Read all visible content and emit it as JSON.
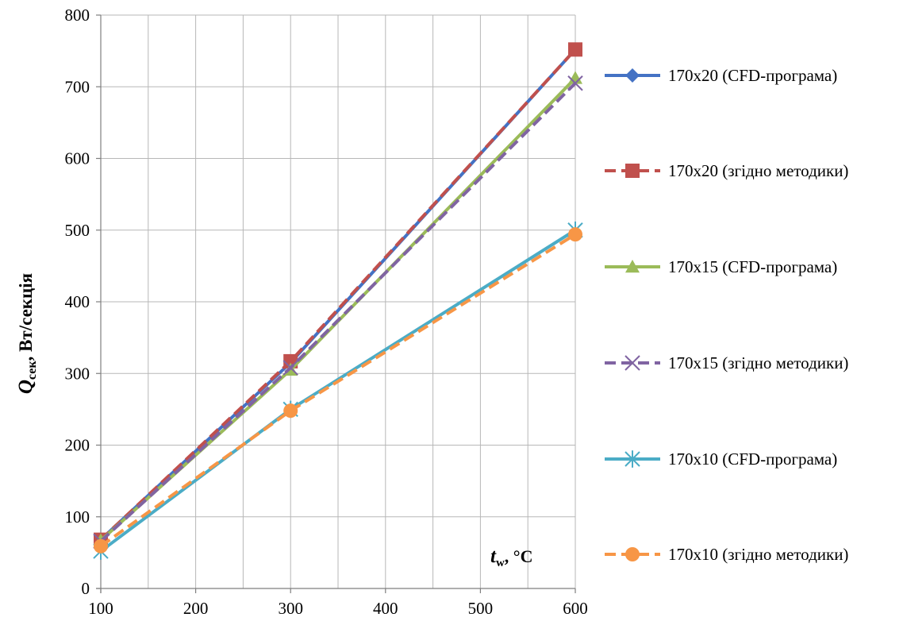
{
  "chart_data": {
    "type": "line",
    "x": [
      100,
      300,
      600
    ],
    "xlim": [
      100,
      600
    ],
    "ylim": [
      0,
      800
    ],
    "x_ticks": [
      100,
      200,
      300,
      400,
      500,
      600
    ],
    "y_ticks": [
      0,
      100,
      200,
      300,
      400,
      500,
      600,
      700,
      800
    ],
    "grid": true,
    "legend_position": "right",
    "xlabel": {
      "main": "t",
      "sub": "w",
      "rest": ", °C"
    },
    "ylabel": {
      "main": "Q",
      "sub": "сек",
      "rest": ", Вт/секція"
    },
    "series": [
      {
        "name": "170x20  (CFD-програма)",
        "values": [
          68,
          315,
          752
        ],
        "color": "#4472C4",
        "dash": "solid",
        "marker": "diamond"
      },
      {
        "name": "170x20  (згідно методики)",
        "values": [
          68,
          317,
          752
        ],
        "color": "#C0504D",
        "dash": "dashed",
        "marker": "square"
      },
      {
        "name": "170x15  (CFD-програма)",
        "values": [
          67,
          305,
          712
        ],
        "color": "#9BBB59",
        "dash": "solid",
        "marker": "triangle"
      },
      {
        "name": "170x15 (згідно методики)",
        "values": [
          66,
          308,
          705
        ],
        "color": "#8064A2",
        "dash": "dashed",
        "marker": "x"
      },
      {
        "name": "170x10  (CFD-програма)",
        "values": [
          52,
          250,
          500
        ],
        "color": "#4BACC6",
        "dash": "solid",
        "marker": "star"
      },
      {
        "name": "170x10  (згідно методики)",
        "values": [
          59,
          248,
          494
        ],
        "color": "#F79646",
        "dash": "dashed",
        "marker": "circle"
      }
    ]
  }
}
